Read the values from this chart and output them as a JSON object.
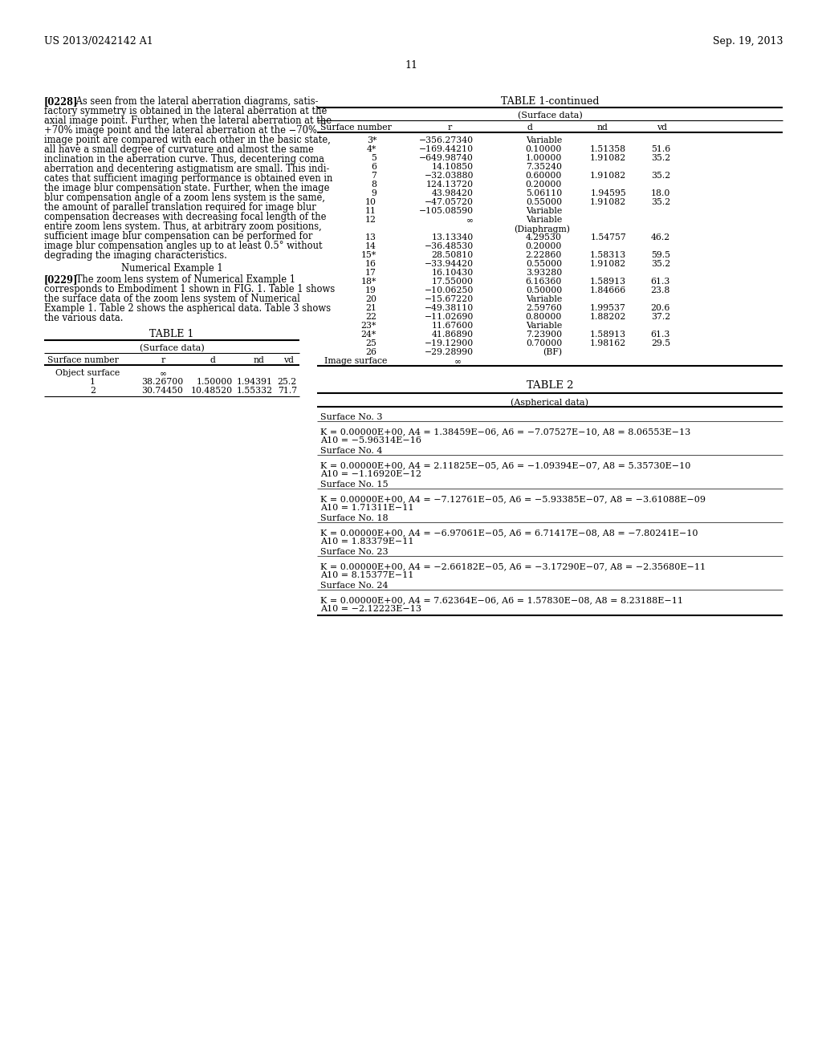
{
  "header_left": "US 2013/0242142 A1",
  "header_right": "Sep. 19, 2013",
  "page_number": "11",
  "para1_lines": [
    "[0228]   As seen from the lateral aberration diagrams, satis-",
    "factory symmetry is obtained in the lateral aberration at the",
    "axial image point. Further, when the lateral aberration at the",
    "+70% image point and the lateral aberration at the −70%",
    "image point are compared with each other in the basic state,",
    "all have a small degree of curvature and almost the same",
    "inclination in the aberration curve. Thus, decentering coma",
    "aberration and decentering astigmatism are small. This indi-",
    "cates that sufficient imaging performance is obtained even in",
    "the image blur compensation state. Further, when the image",
    "blur compensation angle of a zoom lens system is the same,",
    "the amount of parallel translation required for image blur",
    "compensation decreases with decreasing focal length of the",
    "entire zoom lens system. Thus, at arbitrary zoom positions,",
    "sufficient image blur compensation can be performed for",
    "image blur compensation angles up to at least 0.5° without",
    "degrading the imaging characteristics."
  ],
  "heading_numerical": "Numerical Example 1",
  "para2_lines": [
    "[0229]   The zoom lens system of Numerical Example 1",
    "corresponds to Embodiment 1 shown in FIG. 1. Table 1 shows",
    "the surface data of the zoom lens system of Numerical",
    "Example 1. Table 2 shows the aspherical data. Table 3 shows",
    "the various data."
  ],
  "table1_title": "TABLE 1",
  "table1_subtitle": "(Surface data)",
  "table1_col_headers": [
    "Surface number",
    "r",
    "d",
    "nd",
    "vd"
  ],
  "table1_rows": [
    [
      "Object surface",
      "∞",
      "",
      "",
      ""
    ],
    [
      "1",
      "38.26700",
      "1.50000",
      "1.94391",
      "25.2"
    ],
    [
      "2",
      "30.74450",
      "10.48520",
      "1.55332",
      "71.7"
    ]
  ],
  "table1cont_title": "TABLE 1-continued",
  "table1cont_subtitle": "(Surface data)",
  "table1cont_col_headers": [
    "Surface number",
    "r",
    "d",
    "nd",
    "vd"
  ],
  "table1cont_rows": [
    [
      "3*",
      "−356.27340",
      "Variable",
      "",
      ""
    ],
    [
      "4*",
      "−169.44210",
      "0.10000",
      "1.51358",
      "51.6"
    ],
    [
      "5",
      "−649.98740",
      "1.00000",
      "1.91082",
      "35.2"
    ],
    [
      "6",
      "14.10850",
      "7.35240",
      "",
      ""
    ],
    [
      "7",
      "−32.03880",
      "0.60000",
      "1.91082",
      "35.2"
    ],
    [
      "8",
      "124.13720",
      "0.20000",
      "",
      ""
    ],
    [
      "9",
      "43.98420",
      "5.06110",
      "1.94595",
      "18.0"
    ],
    [
      "10",
      "−47.05720",
      "0.55000",
      "1.91082",
      "35.2"
    ],
    [
      "11",
      "−105.08590",
      "Variable",
      "",
      ""
    ],
    [
      "12",
      "∞",
      "Variable",
      "",
      ""
    ],
    [
      "(Diaphragm)",
      "",
      "",
      "",
      ""
    ],
    [
      "13",
      "13.13340",
      "4.29530",
      "1.54757",
      "46.2"
    ],
    [
      "14",
      "−36.48530",
      "0.20000",
      "",
      ""
    ],
    [
      "15*",
      "28.50810",
      "2.22860",
      "1.58313",
      "59.5"
    ],
    [
      "16",
      "−33.94420",
      "0.55000",
      "1.91082",
      "35.2"
    ],
    [
      "17",
      "16.10430",
      "3.93280",
      "",
      ""
    ],
    [
      "18*",
      "17.55000",
      "6.16360",
      "1.58913",
      "61.3"
    ],
    [
      "19",
      "−10.06250",
      "0.50000",
      "1.84666",
      "23.8"
    ],
    [
      "20",
      "−15.67220",
      "Variable",
      "",
      ""
    ],
    [
      "21",
      "−49.38110",
      "2.59760",
      "1.99537",
      "20.6"
    ],
    [
      "22",
      "−11.02690",
      "0.80000",
      "1.88202",
      "37.2"
    ],
    [
      "23*",
      "11.67600",
      "Variable",
      "",
      ""
    ],
    [
      "24*",
      "41.86890",
      "7.23900",
      "1.58913",
      "61.3"
    ],
    [
      "25",
      "−19.12900",
      "0.70000",
      "1.98162",
      "29.5"
    ],
    [
      "26",
      "−29.28990",
      "(BF)",
      "",
      ""
    ],
    [
      "Image surface",
      "∞",
      "",
      "",
      ""
    ]
  ],
  "table2_title": "TABLE 2",
  "table2_subtitle": "(Aspherical data)",
  "table2_sections": [
    {
      "surface_header": "Surface No. 3",
      "data_lines": [
        "K = 0.00000E+00, A4 = 1.38459E−06, A6 = −7.07527E−10, A8 = 8.06553E−13",
        "A10 = −5.96314E−16"
      ]
    },
    {
      "surface_header": "Surface No. 4",
      "data_lines": [
        "K = 0.00000E+00, A4 = 2.11825E−05, A6 = −1.09394E−07, A8 = 5.35730E−10",
        "A10 = −1.16920E−12"
      ]
    },
    {
      "surface_header": "Surface No. 15",
      "data_lines": [
        "K = 0.00000E+00, A4 = −7.12761E−05, A6 = −5.93385E−07, A8 = −3.61088E−09",
        "A10 = 1.71311E−11"
      ]
    },
    {
      "surface_header": "Surface No. 18",
      "data_lines": [
        "K = 0.00000E+00, A4 = −6.97061E−05, A6 = 6.71417E−08, A8 = −7.80241E−10",
        "A10 = 1.83379E−11"
      ]
    },
    {
      "surface_header": "Surface No. 23",
      "data_lines": [
        "K = 0.00000E+00, A4 = −2.66182E−05, A6 = −3.17290E−07, A8 = −2.35680E−11",
        "A10 = 8.15377E−11"
      ]
    },
    {
      "surface_header": "Surface No. 24",
      "data_lines": [
        "K = 0.00000E+00, A4 = 7.62364E−06, A6 = 1.57830E−08, A8 = 8.23188E−11",
        "A10 = −2.12223E−13"
      ]
    }
  ]
}
